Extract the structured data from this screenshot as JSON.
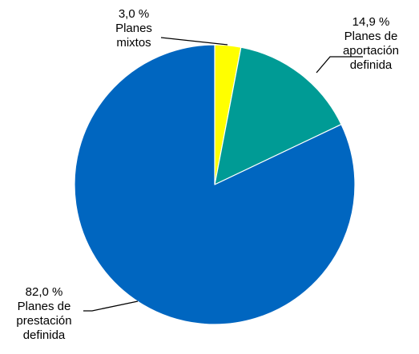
{
  "chart_data": {
    "type": "pie",
    "start_angle_deg": 0,
    "direction": "clockwise",
    "slices": [
      {
        "value": 3.0,
        "value_label": "3,0 %",
        "label_lines": [
          "Planes",
          "mixtos"
        ],
        "color": "#FFFF00"
      },
      {
        "value": 14.9,
        "value_label": "14,9 %",
        "label_lines": [
          "Planes de",
          "aportación",
          "definida"
        ],
        "color": "#009B95"
      },
      {
        "value": 82.0,
        "value_label": "82,0 %",
        "label_lines": [
          "Planes de",
          "prestación",
          "definida"
        ],
        "color": "#0066C0"
      }
    ]
  }
}
